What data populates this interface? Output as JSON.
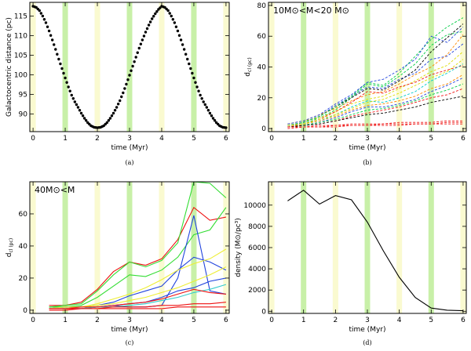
{
  "bands": {
    "yellow": [
      0,
      2,
      4,
      6
    ],
    "green": [
      1,
      3,
      5
    ],
    "yellow_color": "#fafad0",
    "green_color": "#c8f0a8"
  },
  "chart_data": [
    {
      "id": "a",
      "type": "scatter",
      "caption": "(a)",
      "xlabel": "time (Myr)",
      "ylabel": "Galactocentric distance (pc)",
      "xlim": [
        -0.1,
        6.1
      ],
      "ylim": [
        85.5,
        118.5
      ],
      "xticks": [
        0,
        1,
        2,
        3,
        4,
        5,
        6
      ],
      "yticks": [
        90,
        95,
        100,
        105,
        110,
        115
      ],
      "series": [
        {
          "name": "orbit",
          "color": "#000000",
          "x": [
            0,
            0.1,
            0.2,
            0.3,
            0.4,
            0.5,
            0.6,
            0.7,
            0.8,
            0.9,
            1.0,
            1.1,
            1.2,
            1.3,
            1.4,
            1.5,
            1.6,
            1.7,
            1.8,
            1.9,
            2.0,
            2.1,
            2.2,
            2.3,
            2.4,
            2.5,
            2.6,
            2.7,
            2.8,
            2.9,
            3.0,
            3.1,
            3.2,
            3.3,
            3.4,
            3.5,
            3.6,
            3.7,
            3.8,
            3.9,
            4.0,
            4.1,
            4.2,
            4.3,
            4.4,
            4.5,
            4.6,
            4.7,
            4.8,
            4.9,
            5.0,
            5.1,
            5.2,
            5.3,
            5.4,
            5.5,
            5.6,
            5.7,
            5.8,
            5.9,
            6.0
          ],
          "y": [
            117.5,
            117.2,
            116.4,
            115.0,
            113.3,
            111.2,
            108.9,
            106.5,
            104.0,
            101.6,
            99.2,
            96.9,
            94.8,
            93.1,
            91.7,
            90.2,
            88.9,
            87.8,
            87.0,
            86.6,
            86.5,
            86.6,
            87.0,
            87.8,
            88.9,
            90.2,
            91.7,
            93.4,
            95.4,
            97.6,
            99.9,
            102.2,
            104.5,
            106.8,
            108.9,
            110.9,
            112.7,
            114.3,
            115.6,
            116.7,
            117.5,
            117.2,
            116.4,
            115.0,
            113.3,
            111.2,
            108.9,
            106.5,
            104.0,
            101.6,
            99.2,
            96.9,
            94.8,
            93.1,
            91.7,
            90.2,
            88.9,
            87.8,
            87.0,
            86.6,
            86.5
          ]
        }
      ]
    },
    {
      "id": "b",
      "type": "line",
      "caption": "(b)",
      "xlabel": "time (Myr)",
      "ylabel": "d",
      "ylabel_sub": "cl (pc)",
      "annotation": "10M⊙<M<20 M⊙",
      "xlim": [
        -0.1,
        6.1
      ],
      "ylim": [
        -2,
        82
      ],
      "xticks": [
        0,
        1,
        2,
        3,
        4,
        5,
        6
      ],
      "yticks": [
        0,
        20,
        40,
        60,
        80
      ],
      "x": [
        0.5,
        1.0,
        1.5,
        2.0,
        2.5,
        3.0,
        3.5,
        4.0,
        4.5,
        5.0,
        5.5,
        6.0
      ],
      "series": [
        {
          "name": "s1",
          "color": "#2244dd",
          "values": [
            2,
            4,
            8,
            15,
            21,
            27,
            26,
            32,
            36,
            45,
            47,
            55
          ]
        },
        {
          "name": "s2",
          "color": "#ff8800",
          "values": [
            3,
            5,
            9,
            13,
            18,
            22,
            24,
            29,
            35,
            40,
            48,
            61
          ]
        },
        {
          "name": "s3",
          "color": "#00cc44",
          "values": [
            2,
            3,
            7,
            12,
            20,
            29,
            27,
            34,
            42,
            54,
            61,
            63
          ]
        },
        {
          "name": "s4",
          "color": "#dddd00",
          "values": [
            3,
            5,
            7,
            11,
            16,
            19,
            21,
            26,
            31,
            37,
            41,
            50
          ]
        },
        {
          "name": "s5",
          "color": "#ee1111",
          "values": [
            1,
            3,
            6,
            11,
            17,
            24,
            23,
            27,
            30,
            35,
            38,
            41
          ]
        },
        {
          "name": "s6",
          "color": "#000000",
          "values": [
            2,
            4,
            8,
            14,
            20,
            26,
            25,
            31,
            38,
            50,
            59,
            68
          ]
        },
        {
          "name": "s7",
          "color": "#00cccc",
          "values": [
            2,
            3,
            5,
            9,
            14,
            18,
            17,
            20,
            24,
            31,
            36,
            42
          ]
        },
        {
          "name": "s8",
          "color": "#2244dd",
          "values": [
            1,
            2,
            4,
            7,
            11,
            14,
            14,
            16,
            19,
            24,
            28,
            33
          ]
        },
        {
          "name": "s9",
          "color": "#00cc44",
          "values": [
            2,
            4,
            8,
            14,
            21,
            30,
            28,
            36,
            47,
            58,
            66,
            72
          ]
        },
        {
          "name": "s10",
          "color": "#ff8800",
          "values": [
            1,
            3,
            5,
            8,
            12,
            15,
            16,
            18,
            21,
            26,
            29,
            35
          ]
        },
        {
          "name": "s11",
          "color": "#dddd00",
          "values": [
            2,
            3,
            6,
            9,
            13,
            17,
            19,
            23,
            28,
            33,
            37,
            45
          ]
        },
        {
          "name": "s12",
          "color": "#ee1111",
          "values": [
            1,
            2,
            3,
            5,
            8,
            10,
            12,
            14,
            17,
            20,
            22,
            26
          ]
        },
        {
          "name": "s13",
          "color": "#2244dd",
          "values": [
            3,
            5,
            9,
            16,
            22,
            30,
            32,
            38,
            45,
            60,
            56,
            66
          ]
        },
        {
          "name": "s14",
          "color": "#00cc44",
          "values": [
            1,
            2,
            4,
            6,
            9,
            12,
            13,
            15,
            18,
            22,
            25,
            29
          ]
        },
        {
          "name": "s15",
          "color": "#000000",
          "values": [
            1,
            2,
            3,
            5,
            7,
            9,
            10,
            12,
            14,
            17,
            19,
            21
          ]
        },
        {
          "name": "s16",
          "color": "#ee1111",
          "values": [
            1,
            1,
            2,
            2,
            3,
            3,
            3,
            4,
            4,
            4,
            5,
            5
          ]
        },
        {
          "name": "s17",
          "color": "#ee1111",
          "values": [
            0,
            1,
            1,
            1,
            2,
            2,
            2,
            2,
            3,
            3,
            3,
            3
          ]
        },
        {
          "name": "s18",
          "color": "#ee1111",
          "values": [
            1,
            1,
            1,
            2,
            2,
            2,
            3,
            3,
            3,
            3,
            4,
            4
          ]
        }
      ]
    },
    {
      "id": "c",
      "type": "line",
      "caption": "(c)",
      "xlabel": "time (Myr)",
      "ylabel": "d",
      "ylabel_sub": "cl (pc)",
      "annotation": "40M⊙<M",
      "xlim": [
        -0.1,
        6.1
      ],
      "ylim": [
        -2,
        80
      ],
      "xticks": [
        0,
        1,
        2,
        3,
        4,
        5,
        6
      ],
      "yticks": [
        0,
        20,
        40,
        60
      ],
      "x": [
        0.5,
        1.0,
        1.5,
        2.0,
        2.5,
        3.0,
        3.5,
        4.0,
        4.5,
        5.0,
        5.5,
        6.0
      ],
      "series": [
        {
          "name": "red1",
          "color": "#ee1111",
          "values": [
            3,
            3,
            5,
            13,
            24,
            30,
            28,
            32,
            44,
            64,
            56,
            58
          ]
        },
        {
          "name": "green1",
          "color": "#33dd33",
          "values": [
            2,
            3,
            4,
            12,
            22,
            30,
            27,
            31,
            42,
            80,
            79,
            70
          ]
        },
        {
          "name": "green2",
          "color": "#33dd33",
          "values": [
            2,
            2,
            3,
            8,
            15,
            22,
            21,
            25,
            33,
            47,
            50,
            64
          ]
        },
        {
          "name": "blue1",
          "color": "#2244dd",
          "values": [
            1,
            1,
            1,
            2,
            3,
            2,
            2,
            3,
            20,
            59,
            12,
            10
          ]
        },
        {
          "name": "blue2",
          "color": "#2244dd",
          "values": [
            1,
            2,
            2,
            3,
            5,
            9,
            12,
            15,
            25,
            33,
            30,
            25
          ]
        },
        {
          "name": "blue3",
          "color": "#2244dd",
          "values": [
            1,
            1,
            1,
            2,
            3,
            4,
            5,
            8,
            12,
            14,
            18,
            20
          ]
        },
        {
          "name": "yellow1",
          "color": "#eeee33",
          "values": [
            1,
            2,
            2,
            4,
            7,
            10,
            14,
            19,
            25,
            29,
            32,
            38
          ]
        },
        {
          "name": "yellow2",
          "color": "#eeee33",
          "values": [
            1,
            1,
            2,
            3,
            4,
            6,
            8,
            11,
            14,
            18,
            22,
            27
          ]
        },
        {
          "name": "cyan1",
          "color": "#33cccc",
          "values": [
            1,
            1,
            1,
            2,
            2,
            3,
            4,
            6,
            8,
            11,
            13,
            16
          ]
        },
        {
          "name": "red2",
          "color": "#ee1111",
          "values": [
            1,
            1,
            2,
            2,
            3,
            4,
            5,
            7,
            10,
            13,
            11,
            10
          ]
        },
        {
          "name": "red3",
          "color": "#ee1111",
          "values": [
            1,
            1,
            1,
            1,
            2,
            2,
            2,
            3,
            3,
            4,
            4,
            5
          ]
        },
        {
          "name": "red4",
          "color": "#ee1111",
          "values": [
            0,
            0,
            1,
            1,
            1,
            1,
            1,
            1,
            2,
            2,
            2,
            2
          ]
        }
      ]
    },
    {
      "id": "d",
      "type": "line",
      "caption": "(d)",
      "xlabel": "time (Myr)",
      "ylabel": "density (M⊙/pc³)",
      "xlim": [
        -0.1,
        6.1
      ],
      "ylim": [
        -200,
        12200
      ],
      "xticks": [
        0,
        1,
        2,
        3,
        4,
        5,
        6
      ],
      "yticks": [
        0,
        2000,
        4000,
        6000,
        8000,
        10000
      ],
      "x": [
        0.5,
        1.0,
        1.5,
        2.0,
        2.5,
        3.0,
        3.5,
        4.0,
        4.5,
        5.0,
        5.5,
        6.0
      ],
      "series": [
        {
          "name": "density",
          "color": "#000000",
          "values": [
            10400,
            11400,
            10100,
            10900,
            10500,
            8400,
            5700,
            3200,
            1300,
            300,
            100,
            50
          ]
        }
      ]
    }
  ]
}
